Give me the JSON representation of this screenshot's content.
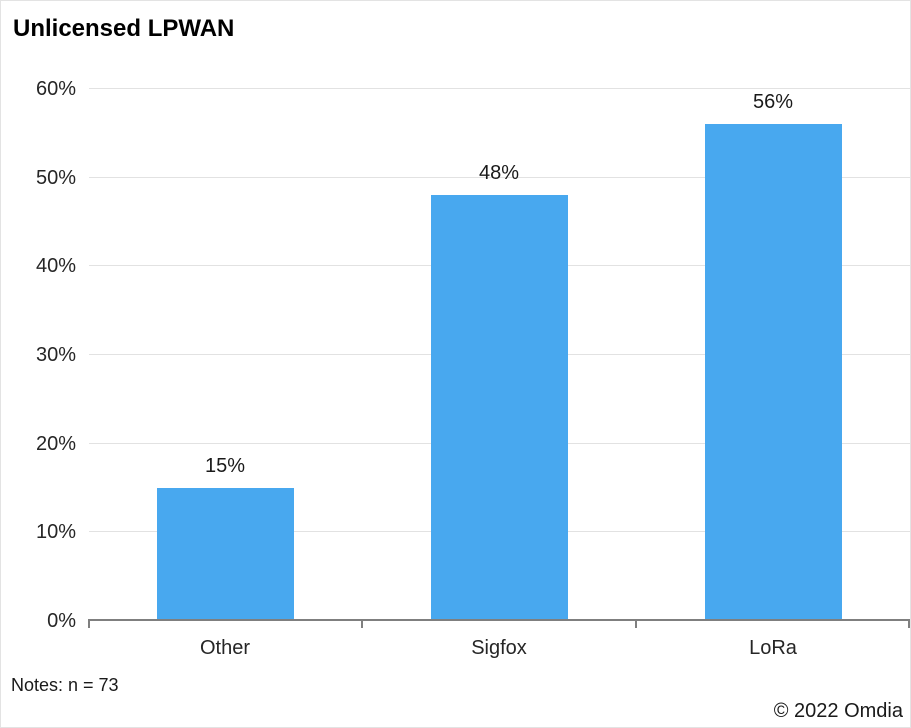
{
  "title": "Unlicensed LPWAN",
  "notes": "Notes: n = 73",
  "copyright": "© 2022 Omdia",
  "colors": {
    "bar": "#48a8ef",
    "axis": "#7f7f7f",
    "gridline": "#e2e2e2",
    "text": "#262626"
  },
  "chart_data": {
    "type": "bar",
    "title": "Unlicensed LPWAN",
    "categories": [
      "Other",
      "Sigfox",
      "LoRa"
    ],
    "values": [
      15,
      48,
      56
    ],
    "value_labels": [
      "15%",
      "48%",
      "56%"
    ],
    "xlabel": "",
    "ylabel": "",
    "ylim": [
      0,
      60
    ],
    "ytick_step": 10,
    "ytick_labels": [
      "0%",
      "10%",
      "20%",
      "30%",
      "40%",
      "50%",
      "60%"
    ],
    "grid": true,
    "legend_position": "none",
    "footnote": "Notes: n = 73",
    "source": "© 2022 Omdia"
  }
}
